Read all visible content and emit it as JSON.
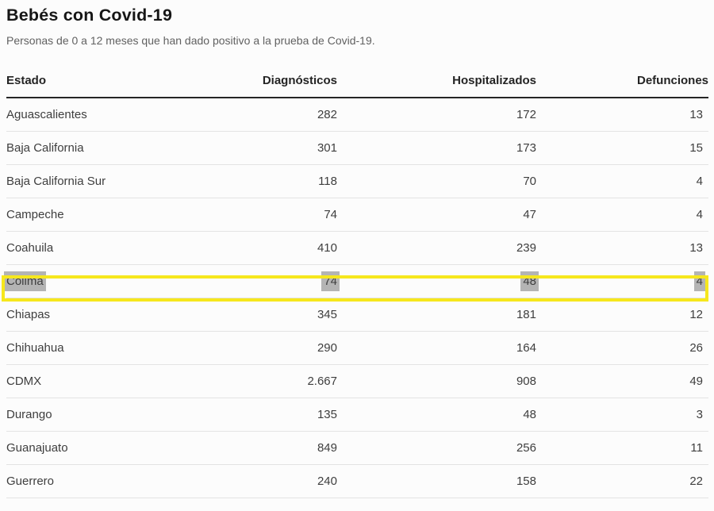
{
  "chart_data": {
    "type": "table",
    "title": "Bebés con Covid-19",
    "subtitle": "Personas de 0 a 12 meses que han dado positivo a la prueba de Covid-19.",
    "columns": [
      "Estado",
      "Diagnósticos",
      "Hospitalizados",
      "Defunciones"
    ],
    "rows": [
      {
        "estado": "Aguascalientes",
        "diagnosticos": "282",
        "hospitalizados": "172",
        "defunciones": "13",
        "highlighted": false
      },
      {
        "estado": "Baja California",
        "diagnosticos": "301",
        "hospitalizados": "173",
        "defunciones": "15",
        "highlighted": false
      },
      {
        "estado": "Baja California Sur",
        "diagnosticos": "118",
        "hospitalizados": "70",
        "defunciones": "4",
        "highlighted": false
      },
      {
        "estado": "Campeche",
        "diagnosticos": "74",
        "hospitalizados": "47",
        "defunciones": "4",
        "highlighted": false
      },
      {
        "estado": "Coahuila",
        "diagnosticos": "410",
        "hospitalizados": "239",
        "defunciones": "13",
        "highlighted": false
      },
      {
        "estado": "Colima",
        "diagnosticos": "74",
        "hospitalizados": "48",
        "defunciones": "4",
        "highlighted": true
      },
      {
        "estado": "Chiapas",
        "diagnosticos": "345",
        "hospitalizados": "181",
        "defunciones": "12",
        "highlighted": false
      },
      {
        "estado": "Chihuahua",
        "diagnosticos": "290",
        "hospitalizados": "164",
        "defunciones": "26",
        "highlighted": false
      },
      {
        "estado": "CDMX",
        "diagnosticos": "2.667",
        "hospitalizados": "908",
        "defunciones": "49",
        "highlighted": false
      },
      {
        "estado": "Durango",
        "diagnosticos": "135",
        "hospitalizados": "48",
        "defunciones": "3",
        "highlighted": false
      },
      {
        "estado": "Guanajuato",
        "diagnosticos": "849",
        "hospitalizados": "256",
        "defunciones": "11",
        "highlighted": false
      },
      {
        "estado": "Guerrero",
        "diagnosticos": "240",
        "hospitalizados": "158",
        "defunciones": "22",
        "highlighted": false
      }
    ],
    "highlight": {
      "row": "Colima",
      "style": "yellow border around full row, gray background behind each cell value"
    },
    "layout": {
      "numeric_columns_alignment": "right",
      "state_column_alignment": "left",
      "grid": "horizontal row dividers only, thick rule under header"
    }
  },
  "colors": {
    "highlight_border": "#f6e71d",
    "cell_highlight_bg": "#b4b4b4",
    "header_rule": "#262626",
    "row_divider": "#e3e3e3",
    "text": "#3e3e3e",
    "header_text": "#242424",
    "title_text": "#161616",
    "subtitle_text": "#616161",
    "page_bg": "#fcfcfc"
  }
}
